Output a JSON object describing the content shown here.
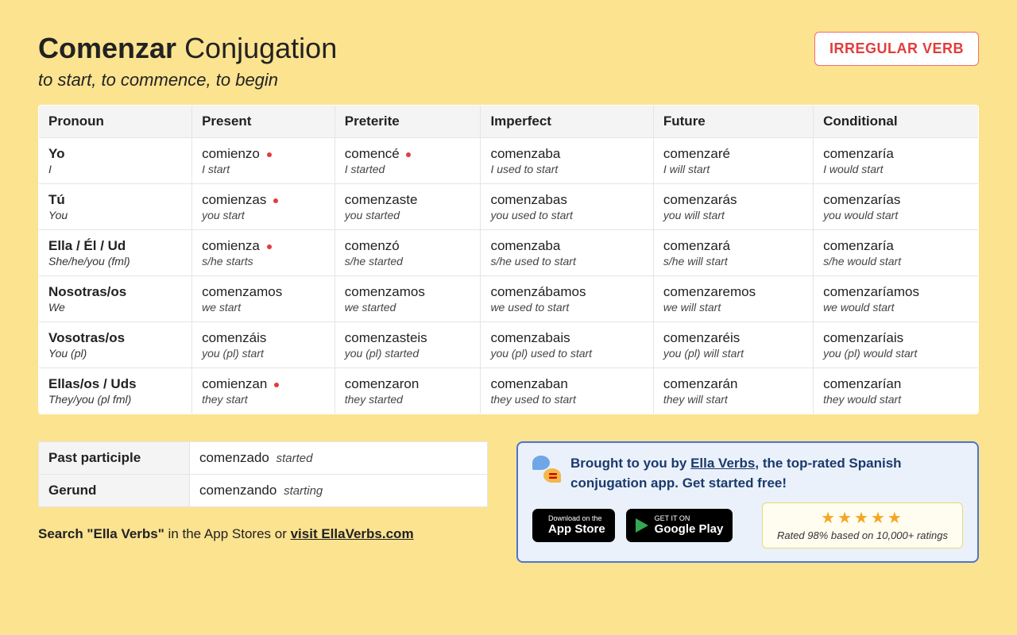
{
  "title_verb": "Comenzar",
  "title_rest": "Conjugation",
  "subtitle": "to start, to commence, to begin",
  "badge": "IRREGULAR VERB",
  "columns": [
    "Pronoun",
    "Present",
    "Preterite",
    "Imperfect",
    "Future",
    "Conditional"
  ],
  "rows": [
    {
      "pronoun": "Yo",
      "pronoun_gloss": "I",
      "cells": [
        {
          "form": "comienzo",
          "gloss": "I start",
          "irr": true
        },
        {
          "form": "comencé",
          "gloss": "I started",
          "irr": true
        },
        {
          "form": "comenzaba",
          "gloss": "I used to start",
          "irr": false
        },
        {
          "form": "comenzaré",
          "gloss": "I will start",
          "irr": false
        },
        {
          "form": "comenzaría",
          "gloss": "I would start",
          "irr": false
        }
      ]
    },
    {
      "pronoun": "Tú",
      "pronoun_gloss": "You",
      "cells": [
        {
          "form": "comienzas",
          "gloss": "you start",
          "irr": true
        },
        {
          "form": "comenzaste",
          "gloss": "you started",
          "irr": false
        },
        {
          "form": "comenzabas",
          "gloss": "you used to start",
          "irr": false
        },
        {
          "form": "comenzarás",
          "gloss": "you will start",
          "irr": false
        },
        {
          "form": "comenzarías",
          "gloss": "you would start",
          "irr": false
        }
      ]
    },
    {
      "pronoun": "Ella / Él / Ud",
      "pronoun_gloss": "She/he/you (fml)",
      "cells": [
        {
          "form": "comienza",
          "gloss": "s/he starts",
          "irr": true
        },
        {
          "form": "comenzó",
          "gloss": "s/he started",
          "irr": false
        },
        {
          "form": "comenzaba",
          "gloss": "s/he used to start",
          "irr": false
        },
        {
          "form": "comenzará",
          "gloss": "s/he will start",
          "irr": false
        },
        {
          "form": "comenzaría",
          "gloss": "s/he would start",
          "irr": false
        }
      ]
    },
    {
      "pronoun": "Nosotras/os",
      "pronoun_gloss": "We",
      "cells": [
        {
          "form": "comenzamos",
          "gloss": "we start",
          "irr": false
        },
        {
          "form": "comenzamos",
          "gloss": "we started",
          "irr": false
        },
        {
          "form": "comenzábamos",
          "gloss": "we used to start",
          "irr": false
        },
        {
          "form": "comenzaremos",
          "gloss": "we will start",
          "irr": false
        },
        {
          "form": "comenzaríamos",
          "gloss": "we would start",
          "irr": false
        }
      ]
    },
    {
      "pronoun": "Vosotras/os",
      "pronoun_gloss": "You (pl)",
      "cells": [
        {
          "form": "comenzáis",
          "gloss": "you (pl) start",
          "irr": false
        },
        {
          "form": "comenzasteis",
          "gloss": "you (pl) started",
          "irr": false
        },
        {
          "form": "comenzabais",
          "gloss": "you (pl) used to start",
          "irr": false
        },
        {
          "form": "comenzaréis",
          "gloss": "you (pl) will start",
          "irr": false
        },
        {
          "form": "comenzaríais",
          "gloss": "you (pl) would start",
          "irr": false
        }
      ]
    },
    {
      "pronoun": "Ellas/os / Uds",
      "pronoun_gloss": "They/you (pl fml)",
      "cells": [
        {
          "form": "comienzan",
          "gloss": "they start",
          "irr": true
        },
        {
          "form": "comenzaron",
          "gloss": "they started",
          "irr": false
        },
        {
          "form": "comenzaban",
          "gloss": "they used to start",
          "irr": false
        },
        {
          "form": "comenzarán",
          "gloss": "they will start",
          "irr": false
        },
        {
          "form": "comenzarían",
          "gloss": "they would start",
          "irr": false
        }
      ]
    }
  ],
  "participles": [
    {
      "label": "Past participle",
      "form": "comenzado",
      "gloss": "started"
    },
    {
      "label": "Gerund",
      "form": "comenzando",
      "gloss": "starting"
    }
  ],
  "search_note_bold": "Search \"Ella Verbs\"",
  "search_note_rest": " in the App Stores or ",
  "search_note_link": "visit EllaVerbs.com",
  "promo": {
    "prefix": "Brought to you by ",
    "link": "Ella Verbs",
    "suffix": ", the top-rated Spanish conjugation app. Get started free!",
    "appstore_small": "Download on the",
    "appstore_big": "App Store",
    "play_small": "GET IT ON",
    "play_big": "Google Play",
    "stars": "★★★★★",
    "rating_text": "Rated 98% based on 10,000+ ratings"
  },
  "colors": {
    "page_bg": "#fce390",
    "badge_border": "#f26e6e",
    "badge_text": "#e33c3c",
    "header_bg": "#f4f4f4",
    "border": "#e5e5e5",
    "promo_bg": "#eaf1fb",
    "promo_border": "#4d74cf",
    "promo_text": "#1b3a6b",
    "star": "#f5a623",
    "rating_bg": "#fffdf0",
    "rating_border": "#e9d877",
    "irr_dot": "#e33c3c"
  }
}
